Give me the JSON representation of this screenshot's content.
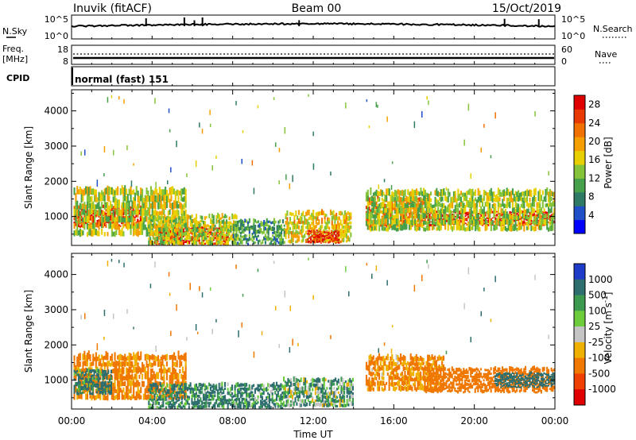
{
  "header": {
    "station": "Inuvik (fitACF)",
    "beam": "Beam 00",
    "date": "15/Oct/2019"
  },
  "summary_strips": {
    "nsky_label": "N.Sky",
    "nsky_ticks": [
      "10^5",
      "10^0"
    ],
    "nsearch_label": "N.Search",
    "nsearch_ticks": [
      "10^5",
      "10^0"
    ],
    "freq_label": "Freq.",
    "freq_unit": "[MHz]",
    "freq_ticks": [
      "18",
      "8"
    ],
    "nave_label": "Nave",
    "nave_ticks": [
      "60",
      "0"
    ],
    "cpid_label": "CPID",
    "cpid_text": "normal (fast) 151"
  },
  "colors": {
    "power_scale": [
      "#0000ff",
      "#2050c8",
      "#2e7a64",
      "#47a04a",
      "#85c438",
      "#e8d000",
      "#f5a000",
      "#f07000",
      "#e83a00",
      "#e00000"
    ],
    "velocity_scale": [
      "#1e3cc8",
      "#2e6e6e",
      "#3c9a50",
      "#6ccc3c",
      "#c4c4c4",
      "#f0b000",
      "#f07800",
      "#f04000",
      "#e00000"
    ]
  },
  "chart_data": [
    {
      "type": "heatmap",
      "panel": "power",
      "xlabel": "",
      "ylabel": "Slant Range [km]",
      "x_ticks": [
        "00:00",
        "04:00",
        "08:00",
        "12:00",
        "16:00",
        "20:00",
        "00:00"
      ],
      "x_range_hours": [
        0,
        24
      ],
      "y_ticks": [
        1000,
        2000,
        3000,
        4000
      ],
      "y_range_km": [
        180,
        4600
      ],
      "colorbar_label": "Power [dB]",
      "colorbar_ticks": [
        4,
        8,
        12,
        16,
        20,
        24,
        28
      ],
      "colorbar_range": [
        0,
        30
      ],
      "regions": [
        {
          "t0": 0.1,
          "t1": 3.6,
          "r0": 700,
          "r1": 1300,
          "value": 26
        },
        {
          "t0": 0.1,
          "t1": 5.7,
          "r0": 450,
          "r1": 1800,
          "value": 15
        },
        {
          "t0": 4.1,
          "t1": 7.8,
          "r0": 220,
          "r1": 700,
          "value": 27
        },
        {
          "t0": 3.8,
          "t1": 8.3,
          "r0": 200,
          "r1": 1050,
          "value": 15
        },
        {
          "t0": 8.0,
          "t1": 10.6,
          "r0": 200,
          "r1": 900,
          "value": 10
        },
        {
          "t0": 10.6,
          "t1": 13.9,
          "r0": 260,
          "r1": 1150,
          "value": 17
        },
        {
          "t0": 11.7,
          "t1": 13.3,
          "r0": 250,
          "r1": 600,
          "value": 27
        },
        {
          "t0": 14.6,
          "t1": 17.8,
          "r0": 700,
          "r1": 1550,
          "value": 22
        },
        {
          "t0": 17.6,
          "t1": 24.0,
          "r0": 750,
          "r1": 1150,
          "value": 27
        },
        {
          "t0": 14.6,
          "t1": 24.0,
          "r0": 600,
          "r1": 1750,
          "value": 14
        }
      ]
    },
    {
      "type": "heatmap",
      "panel": "velocity",
      "xlabel": "Time UT",
      "ylabel": "Slant Range [km]",
      "x_ticks": [
        "00:00",
        "04:00",
        "08:00",
        "12:00",
        "16:00",
        "20:00",
        "00:00"
      ],
      "x_range_hours": [
        0,
        24
      ],
      "y_ticks": [
        1000,
        2000,
        3000,
        4000
      ],
      "y_range_km": [
        180,
        4600
      ],
      "colorbar_label": "Velocity [m s^-1]",
      "colorbar_ticks": [
        "1000",
        "500",
        "100",
        "25",
        "-25",
        "-100",
        "-500",
        "-1000"
      ],
      "regions": [
        {
          "t0": 0.1,
          "t1": 5.7,
          "r0": 450,
          "r1": 1750,
          "value": -150
        },
        {
          "t0": 0.1,
          "t1": 2.0,
          "r0": 600,
          "r1": 1300,
          "value": 150
        },
        {
          "t0": 3.8,
          "t1": 10.5,
          "r0": 200,
          "r1": 900,
          "value": 120
        },
        {
          "t0": 10.5,
          "t1": 14.0,
          "r0": 250,
          "r1": 1050,
          "value": 60
        },
        {
          "t0": 14.6,
          "t1": 18.5,
          "r0": 700,
          "r1": 1700,
          "value": -130
        },
        {
          "t0": 17.5,
          "t1": 24.0,
          "r0": 650,
          "r1": 1350,
          "value": -300
        },
        {
          "t0": 21.0,
          "t1": 24.0,
          "r0": 800,
          "r1": 1200,
          "value": 300
        }
      ]
    }
  ]
}
